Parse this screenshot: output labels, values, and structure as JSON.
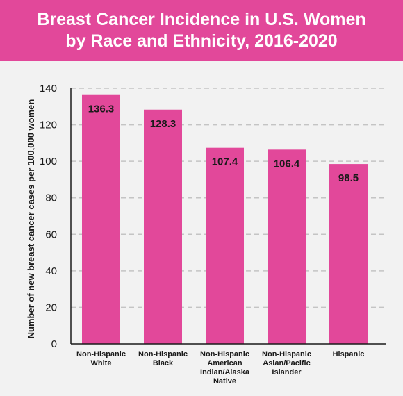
{
  "colors": {
    "header_background": "#e2489a",
    "bar_fill": "#e2489a",
    "title_text": "#ffffff",
    "page_background": "#f2f2f2",
    "gridline": "#c4c4c4",
    "axis": "#1a1a1a"
  },
  "chart_data": {
    "type": "bar",
    "title": "Breast Cancer Incidence in U.S. Women by Race and Ethnicity, 2016-2020",
    "title_lines": [
      "Breast Cancer Incidence in U.S. Women",
      "by Race and Ethnicity, 2016-2020"
    ],
    "xlabel": "",
    "ylabel": "Number of new breast cancer cases per 100,000 women",
    "categories": [
      "Non-Hispanic White",
      "Non-Hispanic Black",
      "Non-Hispanic American Indian/Alaska Native",
      "Non-Hispanic Asian/Pacific Islander",
      "Hispanic"
    ],
    "category_label_lines": [
      [
        "Non-Hispanic",
        "White"
      ],
      [
        "Non-Hispanic",
        "Black"
      ],
      [
        "Non-Hispanic",
        "American",
        "Indian/Alaska",
        "Native"
      ],
      [
        "Non-Hispanic",
        "Asian/Pacific",
        "Islander"
      ],
      [
        "Hispanic"
      ]
    ],
    "values": [
      136.3,
      128.3,
      107.4,
      106.4,
      98.5
    ],
    "value_labels": [
      "136.3",
      "128.3",
      "107.4",
      "106.4",
      "98.5"
    ],
    "ylim": [
      0,
      140
    ],
    "yticks": [
      0,
      20,
      40,
      60,
      80,
      100,
      120,
      140
    ],
    "ytick_labels": [
      "0",
      "20",
      "40",
      "60",
      "80",
      "100",
      "120",
      "140"
    ],
    "grid": true,
    "grid_style": "dashed horizontal",
    "legend": "none"
  }
}
